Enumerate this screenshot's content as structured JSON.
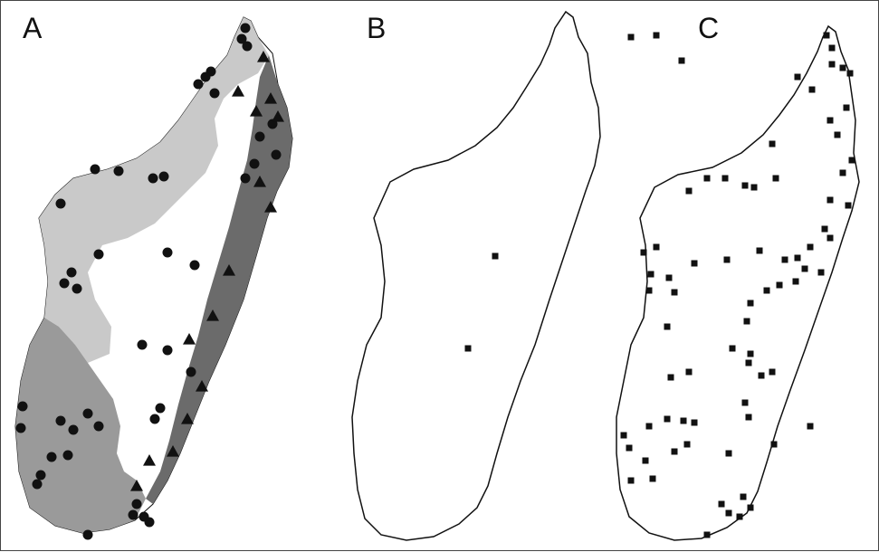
{
  "figure": {
    "panels": [
      {
        "label": "A",
        "content": "map-with-regions-and-points"
      },
      {
        "label": "B",
        "content": "outline-map-sparse-points"
      },
      {
        "label": "C",
        "content": "outline-map-dense-points"
      }
    ]
  },
  "colors": {
    "outline": "#111111",
    "region_light": "#c9c9c9",
    "region_mid": "#9a9a9a",
    "region_dark": "#6b6b6b",
    "marker": "#111111",
    "border": "#444444"
  }
}
